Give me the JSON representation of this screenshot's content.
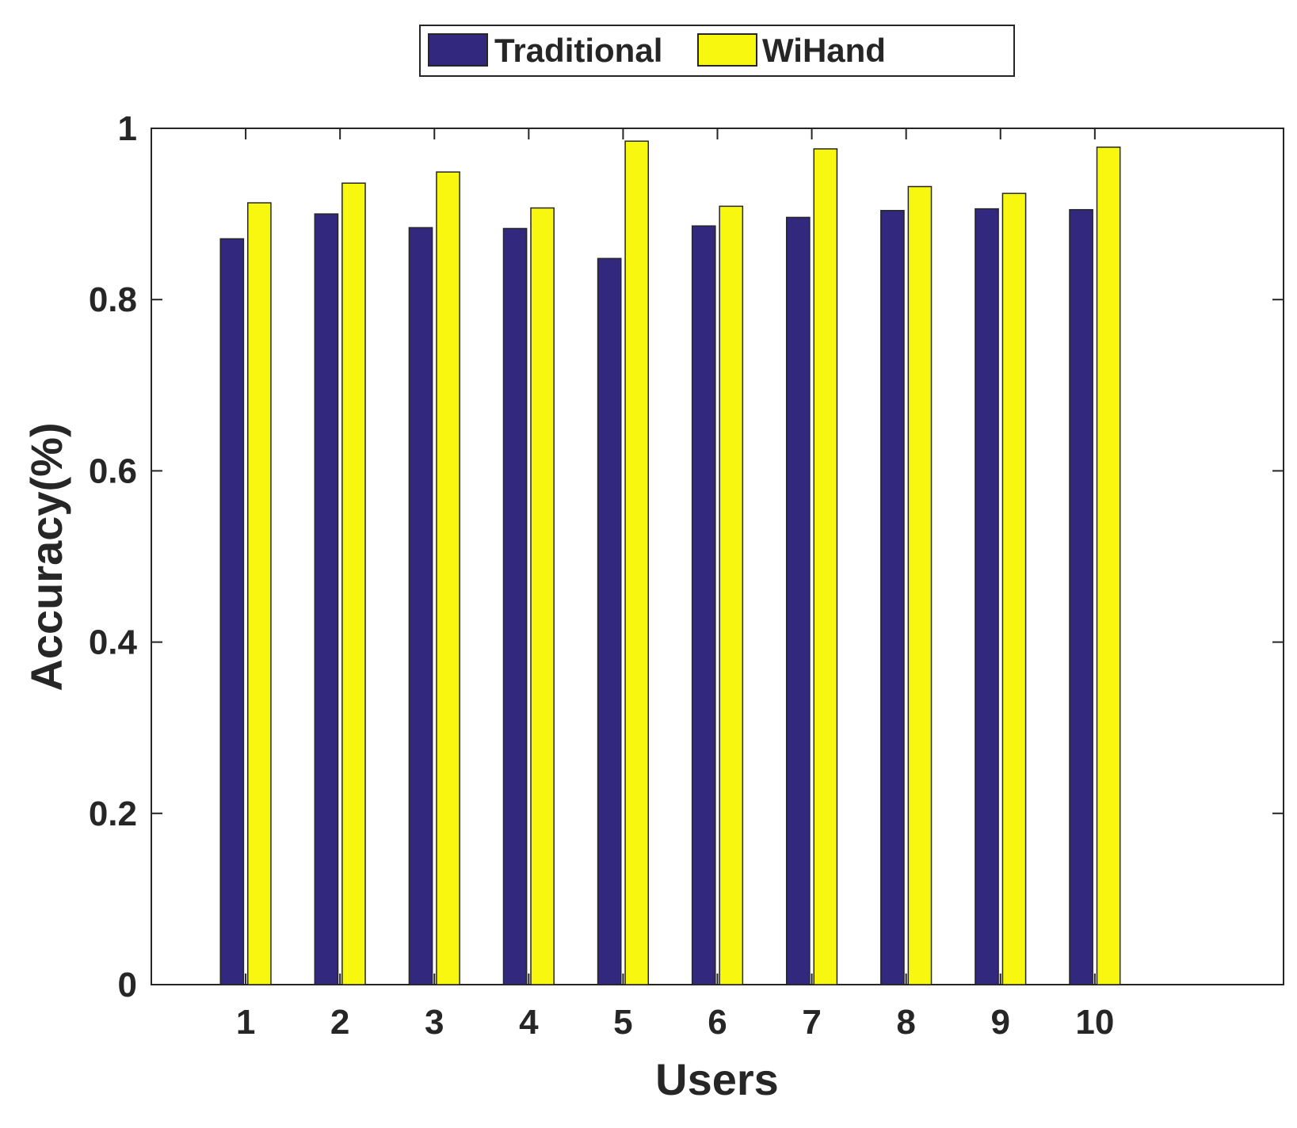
{
  "chart_data": {
    "type": "bar",
    "xlabel": "Users",
    "ylabel": "Accuracy(%)",
    "categories": [
      "1",
      "2",
      "3",
      "4",
      "5",
      "6",
      "7",
      "8",
      "9",
      "10"
    ],
    "x_range": [
      0,
      12
    ],
    "ylim": [
      0,
      1
    ],
    "yticks": [
      0,
      0.2,
      0.4,
      0.6,
      0.8,
      1
    ],
    "ytick_labels": [
      "0",
      "0.2",
      "0.4",
      "0.6",
      "0.8",
      "1"
    ],
    "grid": false,
    "legend_position": "top, outside plot",
    "series": [
      {
        "name": "Traditional",
        "color": "#32297F",
        "values": [
          0.871,
          0.9,
          0.884,
          0.883,
          0.848,
          0.886,
          0.896,
          0.904,
          0.906,
          0.905
        ]
      },
      {
        "name": "WiHand",
        "color": "#F7F70F",
        "values": [
          0.913,
          0.936,
          0.949,
          0.907,
          0.985,
          0.909,
          0.976,
          0.932,
          0.924,
          0.978
        ]
      }
    ]
  }
}
